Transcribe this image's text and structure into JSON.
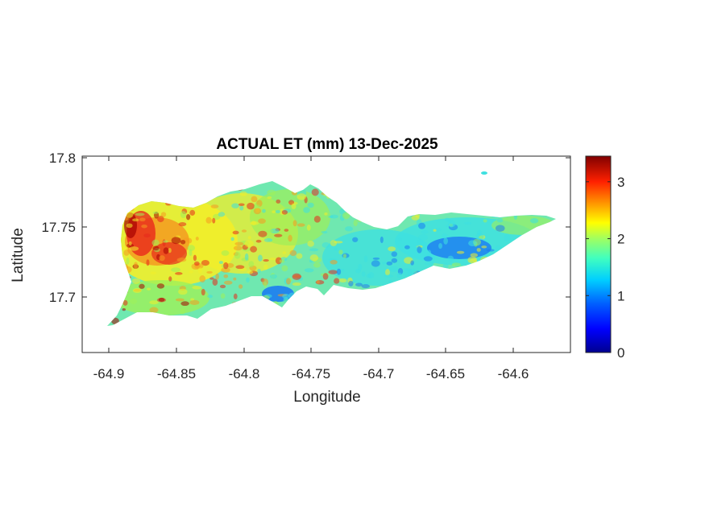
{
  "title": "ACTUAL ET (mm) 13-Dec-2025",
  "xlabel": "Longitude",
  "ylabel": "Latitude",
  "x_ticks": [
    "-64.9",
    "-64.85",
    "-64.8",
    "-64.75",
    "-64.7",
    "-64.65",
    "-64.6"
  ],
  "y_ticks": [
    "17.8",
    "17.75",
    "17.7"
  ],
  "colorbar": {
    "colormap": "jet",
    "range": [
      0,
      3.45
    ],
    "ticks": [
      "0",
      "1",
      "2",
      "3"
    ]
  },
  "colors": {
    "dark_red": "#a50000",
    "red": "#e8281c",
    "orange": "#f59a20",
    "yellow": "#f2ee2a",
    "green": "#9ef05a",
    "cyan": "#3ee0e0",
    "blue": "#1c7cf2",
    "navy": "#00008a"
  }
}
